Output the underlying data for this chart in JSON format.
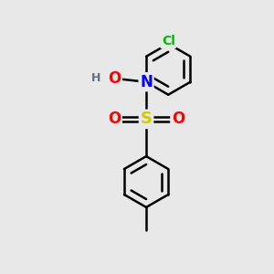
{
  "background_color": "#e8e8e8",
  "bond_color": "#000000",
  "bond_width": 1.8,
  "atom_colors": {
    "Cl": "#00bb00",
    "N": "#0000ff",
    "O": "#ff0000",
    "S": "#cccc00",
    "H": "#607080",
    "C": "#000000"
  },
  "figsize": [
    3.0,
    3.0
  ],
  "dpi": 100
}
